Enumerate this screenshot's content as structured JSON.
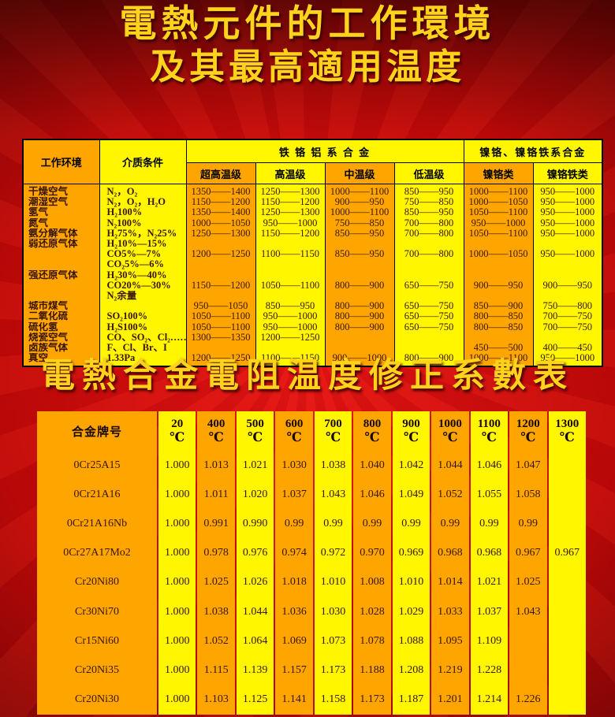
{
  "titles": {
    "line1": "電熱元件的工作環境",
    "line2": "及其最高適用温度",
    "subtitle": "電熱合金電阻温度修正系數表"
  },
  "env_table": {
    "header": {
      "col_env": "工作环境",
      "col_medium": "介质条件",
      "group_fecral": "铁 铬 铝 系 合 金",
      "group_nicr": "镍铬、镍铬铁系合金",
      "sub_cols": [
        "超高温级",
        "高温级",
        "中温级",
        "低温级",
        "镍铬类",
        "镍铬铁类"
      ]
    },
    "lines": [
      {
        "env": "干燥空气",
        "medium": "N₂，O₂",
        "v": [
          "1350——1400",
          "1250——1300",
          "1000——1100",
          "850——950",
          "1000——1100",
          "950——1000"
        ]
      },
      {
        "env": "潮湿空气",
        "medium": "N₂，O₂，H₂O",
        "v": [
          "1150——1200",
          "1150——1200",
          "900——950",
          "750——850",
          "1000——1050",
          "950——1000"
        ]
      },
      {
        "env": "氢气",
        "medium": "H₂100%",
        "v": [
          "1350——1400",
          "1250——1300",
          "1000——1100",
          "850——950",
          "1050——1100",
          "950——1000"
        ]
      },
      {
        "env": "氮气",
        "medium": "N₂100%",
        "v": [
          "1000——1050",
          "950——1000",
          "750——850",
          "700——800",
          "950——1000",
          "950——1000"
        ]
      },
      {
        "env": "氨分解气体",
        "medium": "H₂75%，N₂25%",
        "v": [
          "1250——1300",
          "1150——1200",
          "850——950",
          "700——800",
          "1050——1100",
          "950——1000"
        ]
      },
      {
        "env": "弱还原气体",
        "medium": "H₂10%—15%",
        "v": [
          "",
          "",
          "",
          "",
          "",
          ""
        ]
      },
      {
        "env": "",
        "medium": "CO5%—7%",
        "v": [
          "1200——1250",
          "1100——1150",
          "850——950",
          "700——800",
          "1000——1050",
          "950——1000"
        ]
      },
      {
        "env": "",
        "medium": "CO₂5%—6%",
        "v": [
          "",
          "",
          "",
          "",
          "",
          ""
        ]
      },
      {
        "env": "强还原气体",
        "medium": "H₂30%—40%",
        "v": [
          "",
          "",
          "",
          "",
          "",
          ""
        ]
      },
      {
        "env": "",
        "medium": "CO20%—30%",
        "v": [
          "1150——1200",
          "1050——1100",
          "800——900",
          "650——750",
          "900——950",
          "900——950"
        ]
      },
      {
        "env": "",
        "medium": "N₂余量",
        "v": [
          "",
          "",
          "",
          "",
          "",
          ""
        ]
      },
      {
        "env": "城市煤气",
        "medium": "",
        "v": [
          "950——1050",
          "850——950",
          "800——900",
          "650——750",
          "850——900",
          "750——800"
        ]
      },
      {
        "env": "二氧化硫",
        "medium": "SO₂100%",
        "v": [
          "1050——1100",
          "950——1000",
          "800——900",
          "650——750",
          "800——850",
          "700——750"
        ]
      },
      {
        "env": "硫化氢",
        "medium": "H₂S100%",
        "v": [
          "1050——1100",
          "950——1000",
          "800——900",
          "650——750",
          "800——850",
          "700——750"
        ]
      },
      {
        "env": "烧瓷空气",
        "medium": "CO、SO₂、Cl₂……",
        "v": [
          "1300——1350",
          "1200——1250",
          "",
          "",
          "",
          ""
        ]
      },
      {
        "env": "卤族气体",
        "medium": "F、Cl、Br、I",
        "v": [
          "",
          "",
          "",
          "",
          "450——500",
          "400——450"
        ]
      },
      {
        "env": "真空",
        "medium": "1.33Pa",
        "v": [
          "1200——1250",
          "1100——1150",
          "900——1000",
          "800——900",
          "1000——1100",
          "950——1000"
        ]
      }
    ]
  },
  "coef_table": {
    "header_label": "合金牌号",
    "unit": "℃",
    "temps": [
      "20",
      "400",
      "500",
      "600",
      "700",
      "800",
      "900",
      "1000",
      "1100",
      "1200",
      "1300"
    ],
    "rows": [
      {
        "grade": "0Cr25A15",
        "values": [
          "1.000",
          "1.013",
          "1.021",
          "1.030",
          "1.038",
          "1.040",
          "1.042",
          "1.044",
          "1.046",
          "1.047",
          ""
        ]
      },
      {
        "grade": "0Cr21A16",
        "values": [
          "1.000",
          "1.011",
          "1.020",
          "1.037",
          "1.043",
          "1.046",
          "1.049",
          "1.052",
          "1.055",
          "1.058",
          ""
        ]
      },
      {
        "grade": "0Cr21A16Nb",
        "values": [
          "1.000",
          "0.991",
          "0.990",
          "0.99",
          "0.99",
          "0.99",
          "0.99",
          "0.99",
          "0.99",
          "0.99",
          ""
        ]
      },
      {
        "grade": "0Cr27A17Mo2",
        "values": [
          "1.000",
          "0.978",
          "0.976",
          "0.974",
          "0.972",
          "0.970",
          "0.969",
          "0.968",
          "0.968",
          "0.967",
          "0.967"
        ]
      },
      {
        "grade": "Cr20Ni80",
        "values": [
          "1.000",
          "1.025",
          "1.026",
          "1.018",
          "1.010",
          "1.008",
          "1.010",
          "1.014",
          "1.021",
          "1.025",
          ""
        ]
      },
      {
        "grade": "Cr30Ni70",
        "values": [
          "1.000",
          "1.038",
          "1.044",
          "1.036",
          "1.030",
          "1.028",
          "1.029",
          "1.033",
          "1.037",
          "1.043",
          ""
        ]
      },
      {
        "grade": "Cr15Ni60",
        "values": [
          "1.000",
          "1.052",
          "1.064",
          "1.069",
          "1.073",
          "1.078",
          "1.088",
          "1.095",
          "1.109",
          "",
          ""
        ]
      },
      {
        "grade": "Cr20Ni35",
        "values": [
          "1.000",
          "1.115",
          "1.139",
          "1.157",
          "1.173",
          "1.188",
          "1.208",
          "1.219",
          "1.228",
          "",
          ""
        ]
      },
      {
        "grade": "Cr20Ni30",
        "values": [
          "1.000",
          "1.103",
          "1.125",
          "1.141",
          "1.158",
          "1.173",
          "1.187",
          "1.201",
          "1.214",
          "1.226",
          ""
        ]
      }
    ]
  },
  "colors": {
    "red_center": "#e81414",
    "red_mid": "#c00808",
    "red_edge": "#420202",
    "title_gold": "#ffd21c",
    "orange": "#ffa500",
    "yellow": "#fff600",
    "ink": "#3a1600"
  }
}
